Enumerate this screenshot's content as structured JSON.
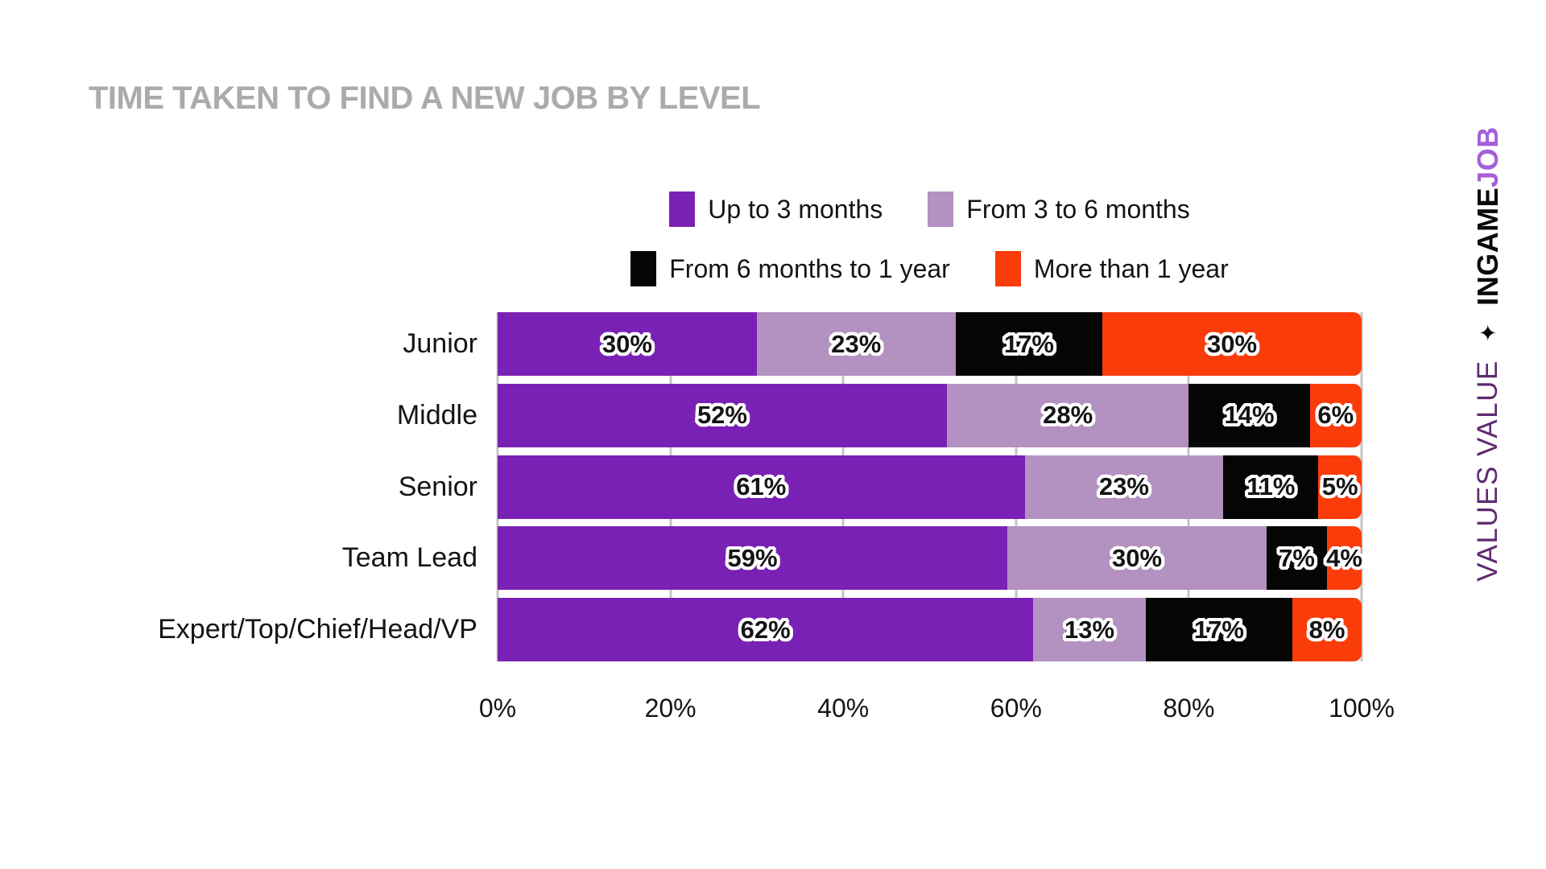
{
  "title": "TIME TAKEN TO FIND A NEW JOB BY LEVEL",
  "chart_data": {
    "type": "bar",
    "variant": "horizontal-stacked",
    "title": "TIME TAKEN TO FIND A NEW JOB BY LEVEL",
    "categories": [
      "Junior",
      "Middle",
      "Senior",
      "Team Lead",
      "Expert/Top/Chief/Head/VP"
    ],
    "series": [
      {
        "name": "Up to 3 months",
        "color": "#7A21B5",
        "values": [
          30,
          52,
          61,
          59,
          62
        ]
      },
      {
        "name": "From 3 to 6 months",
        "color": "#B391C1",
        "values": [
          23,
          28,
          23,
          30,
          13
        ]
      },
      {
        "name": "From 6 months to 1 year",
        "color": "#050505",
        "values": [
          17,
          14,
          11,
          7,
          17
        ]
      },
      {
        "name": "More than 1 year",
        "color": "#FA3C0A",
        "values": [
          30,
          6,
          5,
          4,
          8
        ]
      }
    ],
    "x_ticks": [
      "0%",
      "20%",
      "40%",
      "60%",
      "80%",
      "100%"
    ],
    "xlim": [
      0,
      100
    ],
    "value_suffix": "%",
    "legend_position": "top-center",
    "grid": "vertical-light"
  },
  "branding": {
    "values_value": "VALUES VALUE",
    "star": "✦",
    "ingame": "INGAME",
    "job": "JOB"
  },
  "colors": {
    "title_text": "#ABABAB",
    "grid_line": "#C4C4C4",
    "label_text": "#141414",
    "brand_values_value": "#5E2A70",
    "brand_ingame": "#0A0A0A",
    "brand_job": "#A55FD8"
  }
}
